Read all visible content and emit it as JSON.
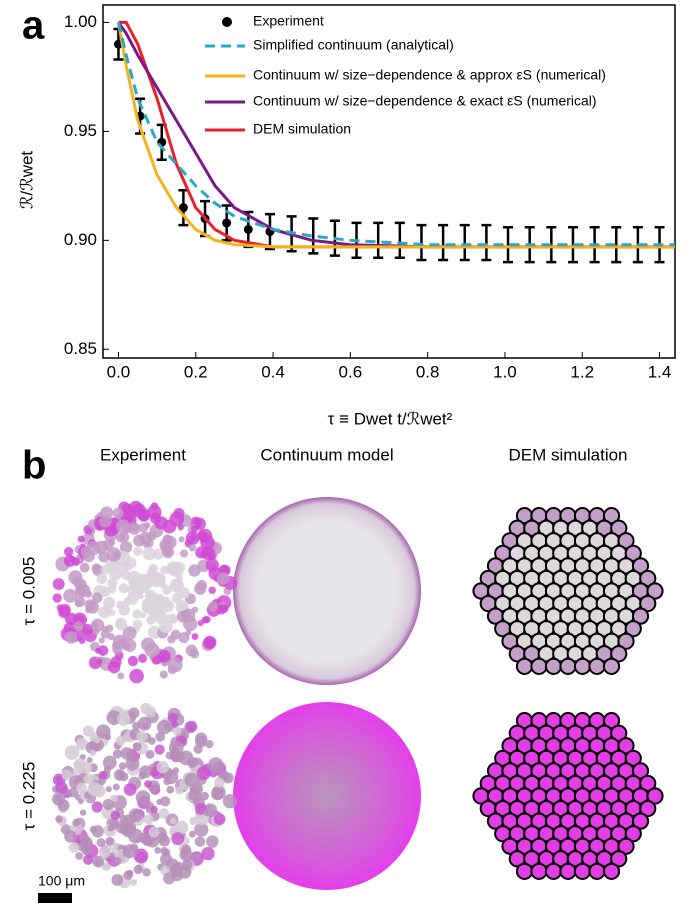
{
  "chart_data": {
    "type": "line",
    "y_label": "ℛ/ℛwet",
    "x_label": "τ ≡ Dwet t/ℛwet²",
    "xlim": [
      -0.04,
      1.44
    ],
    "ylim": [
      0.846,
      1.008
    ],
    "xticks": [
      {
        "value": 0,
        "label": "0.0"
      },
      0.2,
      0.4,
      0.6,
      0.8,
      {
        "value": 1,
        "label": "1.0"
      },
      1.2,
      1.4
    ],
    "yticks": [
      0.85,
      {
        "value": 0.9,
        "label": "0.90"
      },
      0.95,
      {
        "value": 1,
        "label": "1.00"
      }
    ],
    "experiment": {
      "name": "Experiment",
      "color": "#000000",
      "x": [
        0,
        0.056,
        0.112,
        0.168,
        0.224,
        0.28,
        0.336,
        0.392,
        0.448,
        0.504,
        0.56,
        0.616,
        0.672,
        0.728,
        0.784,
        0.84,
        0.896,
        0.952,
        1.008,
        1.064,
        1.12,
        1.176,
        1.232,
        1.288,
        1.344,
        1.4
      ],
      "values": [
        0.99,
        0.957,
        0.945,
        0.915,
        0.91,
        0.908,
        0.905,
        0.904,
        0.903,
        0.902,
        0.901,
        0.9,
        0.9,
        0.9,
        0.899,
        0.899,
        0.899,
        0.899,
        0.898,
        0.898,
        0.898,
        0.898,
        0.898,
        0.898,
        0.898,
        0.898
      ],
      "errors": [
        0.007,
        0.008,
        0.008,
        0.008,
        0.008,
        0.008,
        0.008,
        0.008,
        0.008,
        0.008,
        0.008,
        0.008,
        0.008,
        0.008,
        0.008,
        0.008,
        0.008,
        0.008,
        0.008,
        0.008,
        0.008,
        0.008,
        0.008,
        0.008,
        0.008,
        0.008
      ]
    },
    "x": [
      0,
      0.02,
      0.05,
      0.1,
      0.15,
      0.2,
      0.25,
      0.3,
      0.4,
      0.5,
      0.6,
      0.8,
      1.0,
      1.2,
      1.44
    ],
    "series": [
      {
        "name": "Simplified continuum (analytical)",
        "color": "#2aa6c8",
        "dash": true,
        "values": [
          1.0,
          0.985,
          0.965,
          0.945,
          0.935,
          0.925,
          0.917,
          0.911,
          0.905,
          0.902,
          0.9,
          0.898,
          0.898,
          0.898,
          0.898
        ]
      },
      {
        "name": "Continuum w/ size−dependence & approx εS (numerical)",
        "color": "#f5b21b",
        "dash": false,
        "values": [
          1.0,
          0.98,
          0.955,
          0.93,
          0.915,
          0.905,
          0.9,
          0.898,
          0.897,
          0.897,
          0.897,
          0.897,
          0.897,
          0.897,
          0.897
        ]
      },
      {
        "name": "Continuum w/ size−dependence & exact εS (numerical)",
        "color": "#7b1a86",
        "dash": false,
        "values": [
          1.0,
          0.995,
          0.985,
          0.97,
          0.955,
          0.94,
          0.925,
          0.915,
          0.905,
          0.9,
          0.898,
          0.897,
          0.897,
          0.897,
          0.897
        ]
      },
      {
        "name": "DEM simulation",
        "color": "#e8202a",
        "dash": false,
        "values": [
          1.0,
          1.0,
          0.99,
          0.965,
          0.935,
          0.915,
          0.905,
          0.9,
          0.897,
          0.897,
          0.897,
          0.897,
          0.897,
          0.897,
          0.897
        ]
      }
    ]
  },
  "panel_labels": [
    "a",
    "b"
  ],
  "panel_b": {
    "columns": [
      "Experiment",
      "Continuum model",
      "DEM simulation"
    ],
    "rows": [
      "τ = 0.005",
      "τ = 0.225"
    ],
    "scale_bar": "100 μm"
  }
}
